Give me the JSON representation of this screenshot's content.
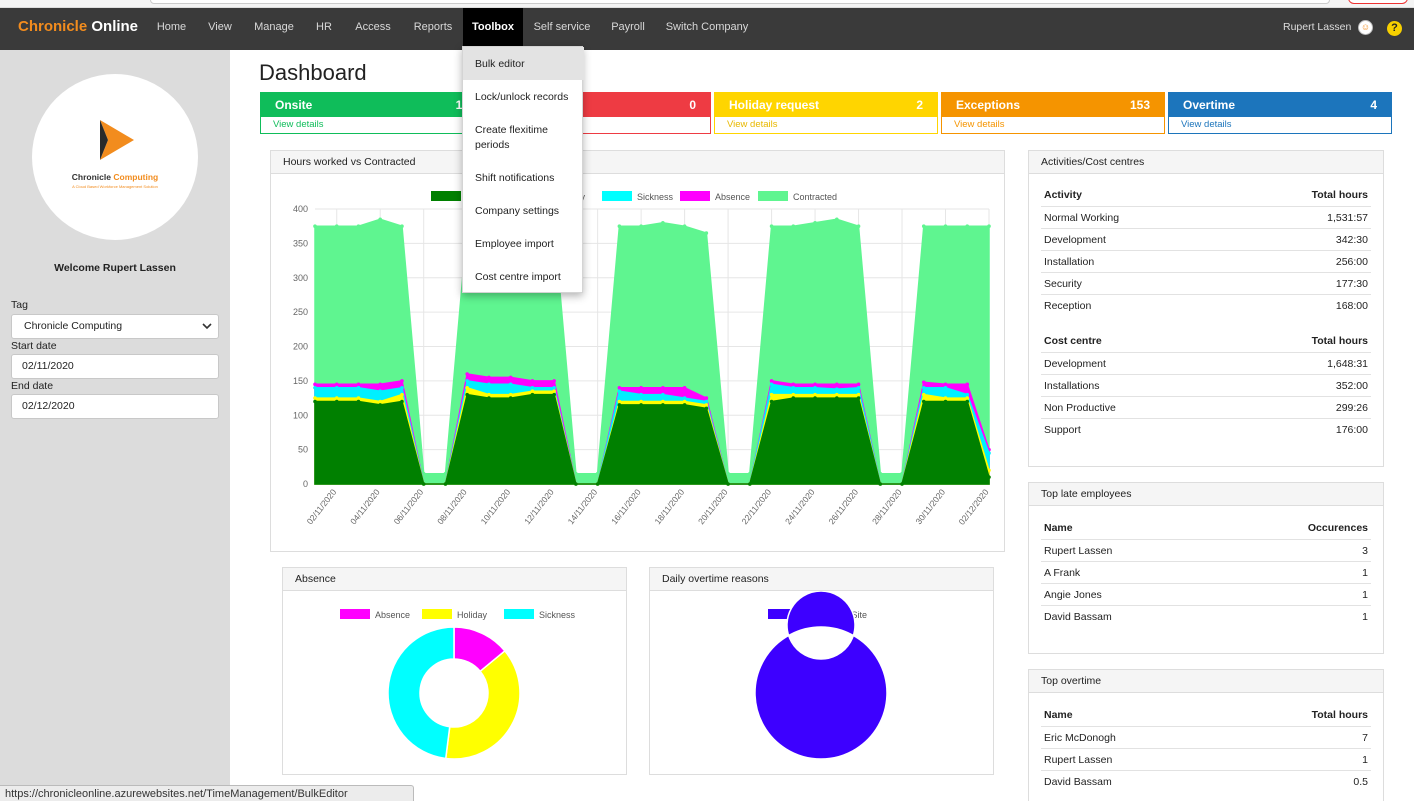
{
  "brand": {
    "part1": "Chronicle",
    "part2": "Online"
  },
  "nav": [
    {
      "label": "Home"
    },
    {
      "label": "View"
    },
    {
      "label": "Manage"
    },
    {
      "label": "HR"
    },
    {
      "label": "Access"
    },
    {
      "label": "Reports"
    },
    {
      "label": "Toolbox",
      "active": true
    },
    {
      "label": "Self service"
    },
    {
      "label": "Payroll"
    },
    {
      "label": "Switch Company"
    }
  ],
  "user": {
    "name": "Rupert Lassen",
    "help_icon": "?"
  },
  "sidebar": {
    "logo": {
      "name1": "Chronicle",
      "name2": "Computing",
      "tagline": "A Cloud Based Workforce Management Solution"
    },
    "welcome": "Welcome Rupert Lassen",
    "tag_label": "Tag",
    "tag_value": "Chronicle Computing",
    "start_label": "Start date",
    "start_value": "02/11/2020",
    "end_label": "End date",
    "end_value": "02/12/2020"
  },
  "page_title": "Dashboard",
  "stats": [
    {
      "label": "Onsite",
      "count": "13",
      "link": "View details",
      "color": "#0fbd5a"
    },
    {
      "label": "",
      "count": "0",
      "link": "",
      "color": "#ee3b43"
    },
    {
      "label": "Holiday request",
      "count": "2",
      "link": "View details",
      "color": "#ffd500"
    },
    {
      "label": "Exceptions",
      "count": "153",
      "link": "View details",
      "color": "#f59400"
    },
    {
      "label": "Overtime",
      "count": "4",
      "link": "View details",
      "color": "#1c75bc"
    }
  ],
  "dropdown": {
    "items": [
      "Bulk editor",
      "Lock/unlock records",
      "Create flexitime periods",
      "Shift notifications",
      "Company settings",
      "Employee import",
      "Cost centre import"
    ]
  },
  "panels": {
    "hours_title": "Hours worked vs Contracted",
    "absence_title": "Absence",
    "overtime_reasons_title": "Daily overtime reasons",
    "activities_title": "Activities/Cost centres",
    "late_title": "Top late employees",
    "top_overtime_title": "Top overtime"
  },
  "tables": {
    "activity": {
      "col1": "Activity",
      "col2": "Total hours",
      "rows": [
        [
          "Normal Working",
          "1,531:57"
        ],
        [
          "Development",
          "342:30"
        ],
        [
          "Installation",
          "256:00"
        ],
        [
          "Security",
          "177:30"
        ],
        [
          "Reception",
          "168:00"
        ]
      ]
    },
    "costcentre": {
      "col1": "Cost centre",
      "col2": "Total hours",
      "rows": [
        [
          "Development",
          "1,648:31"
        ],
        [
          "Installations",
          "352:00"
        ],
        [
          "Non Productive",
          "299:26"
        ],
        [
          "Support",
          "176:00"
        ]
      ]
    },
    "late": {
      "col1": "Name",
      "col2": "Occurences",
      "rows": [
        [
          "Rupert Lassen",
          "3"
        ],
        [
          "A Frank",
          "1"
        ],
        [
          "Angie Jones",
          "1"
        ],
        [
          "David Bassam",
          "1"
        ]
      ]
    },
    "overtime": {
      "col1": "Name",
      "col2": "Total hours",
      "rows": [
        [
          "Eric McDonogh",
          "7"
        ],
        [
          "Rupert Lassen",
          "1"
        ],
        [
          "David Bassam",
          "0.5"
        ]
      ]
    }
  },
  "status_url": "https://chronicleonline.azurewebsites.net/TimeManagement/BulkEditor",
  "chart_data": [
    {
      "type": "area",
      "title": "Hours worked vs Contracted",
      "ylim": [
        0,
        400
      ],
      "yticks": [
        0,
        50,
        100,
        150,
        200,
        250,
        300,
        350,
        400
      ],
      "x": [
        "01/11/2020",
        "02/11/2020",
        "03/11/2020",
        "04/11/2020",
        "05/11/2020",
        "06/11/2020",
        "07/11/2020",
        "08/11/2020",
        "09/11/2020",
        "10/11/2020",
        "11/11/2020",
        "12/11/2020",
        "13/11/2020",
        "14/11/2020",
        "15/11/2020",
        "16/11/2020",
        "17/11/2020",
        "18/11/2020",
        "19/11/2020",
        "20/11/2020",
        "21/11/2020",
        "22/11/2020",
        "23/11/2020",
        "24/11/2020",
        "25/11/2020",
        "26/11/2020",
        "27/11/2020",
        "28/11/2020",
        "29/11/2020",
        "30/11/2020",
        "01/12/2020",
        "02/12/2020"
      ],
      "xtick_labels": [
        "02/11/2020",
        "04/11/2020",
        "06/11/2020",
        "08/11/2020",
        "10/11/2020",
        "12/11/2020",
        "14/11/2020",
        "16/11/2020",
        "18/11/2020",
        "20/11/2020",
        "22/11/2020",
        "24/11/2020",
        "26/11/2020",
        "28/11/2020",
        "30/11/2020",
        "02/12/2020"
      ],
      "legend_visible": [
        "Holiday",
        "Sickness",
        "Absence",
        "Contracted"
      ],
      "series": [
        {
          "name": "Contracted",
          "color": "#5ff590",
          "values": [
            375,
            375,
            375,
            385,
            375,
            15,
            15,
            375,
            375,
            375,
            380,
            375,
            15,
            15,
            375,
            375,
            380,
            375,
            365,
            15,
            15,
            375,
            375,
            380,
            385,
            375,
            15,
            15,
            375,
            375,
            375,
            375
          ]
        },
        {
          "name": "Absence",
          "color": "#ff00ff",
          "values": [
            145,
            145,
            145,
            145,
            150,
            0,
            0,
            160,
            155,
            155,
            150,
            150,
            0,
            0,
            140,
            140,
            140,
            140,
            125,
            0,
            0,
            150,
            145,
            145,
            145,
            145,
            0,
            0,
            148,
            145,
            145,
            50
          ]
        },
        {
          "name": "Sickness",
          "color": "#00f0ff",
          "values": [
            140,
            140,
            140,
            135,
            140,
            0,
            0,
            150,
            145,
            145,
            140,
            140,
            0,
            0,
            135,
            130,
            130,
            125,
            120,
            0,
            0,
            145,
            140,
            140,
            138,
            140,
            0,
            0,
            140,
            140,
            130,
            45
          ]
        },
        {
          "name": "Holiday",
          "color": "#ffff00",
          "values": [
            125,
            125,
            125,
            120,
            130,
            0,
            0,
            140,
            130,
            130,
            135,
            135,
            0,
            0,
            120,
            120,
            120,
            120,
            115,
            0,
            0,
            130,
            130,
            130,
            130,
            130,
            0,
            0,
            130,
            125,
            125,
            20
          ]
        },
        {
          "name": "",
          "color": "#008000",
          "values": [
            120,
            120,
            120,
            115,
            120,
            0,
            0,
            130,
            125,
            125,
            130,
            130,
            0,
            0,
            115,
            115,
            115,
            115,
            110,
            0,
            0,
            120,
            125,
            125,
            125,
            125,
            0,
            0,
            120,
            120,
            120,
            10
          ]
        }
      ]
    },
    {
      "type": "pie",
      "title": "Absence",
      "categories": [
        "Absence",
        "Holiday",
        "Sickness"
      ],
      "values": [
        14,
        38,
        48
      ],
      "colors": [
        "#ff00ff",
        "#ffff00",
        "#00ffff"
      ]
    },
    {
      "type": "pie",
      "title": "Daily overtime reasons",
      "categories": [
        "Incident On Site"
      ],
      "values": [
        100
      ],
      "colors": [
        "#3d00ff"
      ]
    }
  ]
}
